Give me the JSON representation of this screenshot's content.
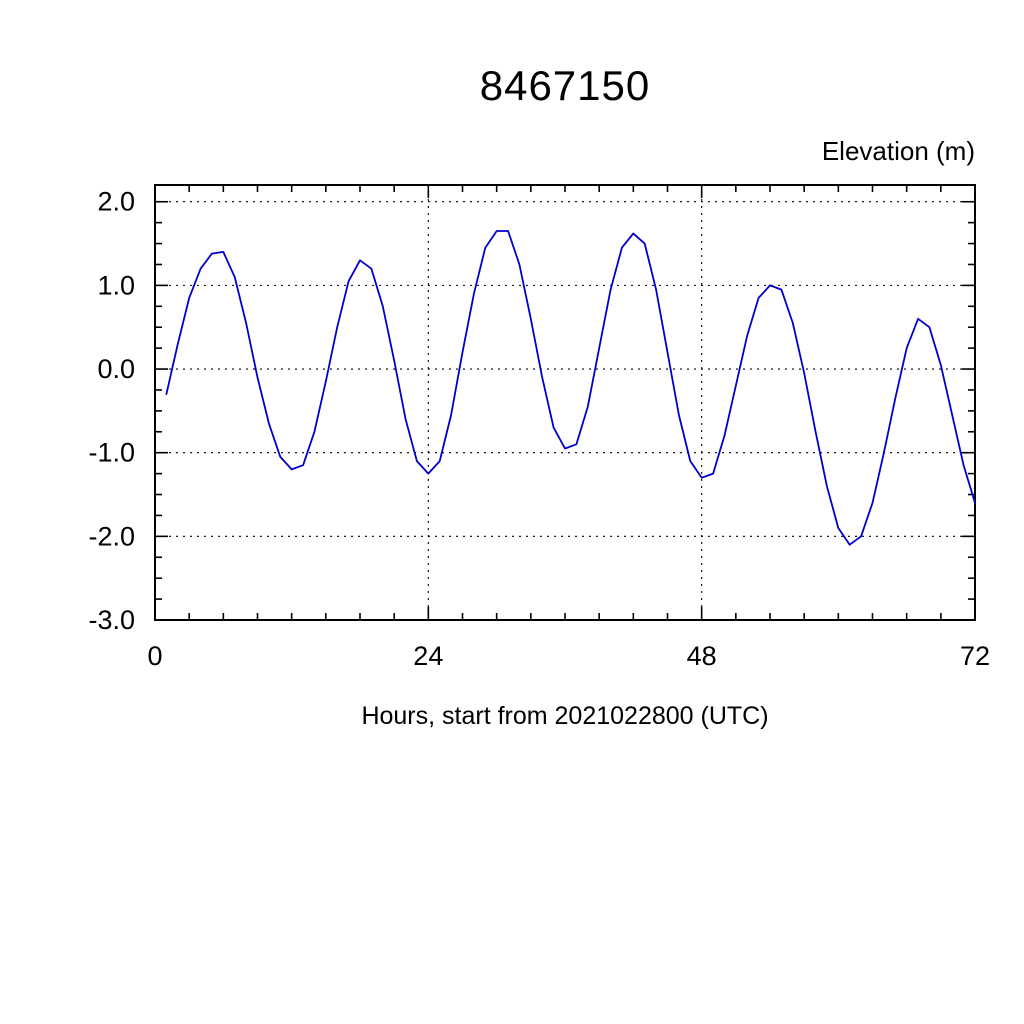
{
  "chart_data": {
    "type": "line",
    "title": "8467150",
    "ylabel": "Elevation (m)",
    "xlabel": "Hours, start from 2021022800 (UTC)",
    "xlim": [
      0,
      72
    ],
    "ylim": [
      -3.0,
      2.2
    ],
    "x_ticks": [
      0,
      24,
      48,
      72
    ],
    "x_tick_labels": [
      "0",
      "24",
      "48",
      "72"
    ],
    "y_ticks": [
      2.0,
      1.0,
      0.0,
      -1.0,
      -2.0,
      -3.0
    ],
    "y_tick_labels": [
      "2.0",
      "1.0",
      "0.0",
      "-1.0",
      "-2.0",
      "-3.0"
    ],
    "x_minor_step": 3,
    "y_minor_step": 0.25,
    "grid": "dashed",
    "legend": "none",
    "line_color": "#0000cc",
    "x": [
      1,
      2,
      3,
      4,
      5,
      6,
      7,
      8,
      9,
      10,
      11,
      12,
      13,
      14,
      15,
      16,
      17,
      18,
      19,
      20,
      21,
      22,
      23,
      24,
      25,
      26,
      27,
      28,
      29,
      30,
      31,
      32,
      33,
      34,
      35,
      36,
      37,
      38,
      39,
      40,
      41,
      42,
      43,
      44,
      45,
      46,
      47,
      48,
      49,
      50,
      51,
      52,
      53,
      54,
      55,
      56,
      57,
      58,
      59,
      60,
      61,
      62,
      63,
      64,
      65,
      66,
      67,
      68,
      69,
      70,
      71,
      72
    ],
    "y": [
      -0.3,
      0.3,
      0.85,
      1.2,
      1.38,
      1.4,
      1.1,
      0.55,
      -0.1,
      -0.65,
      -1.05,
      -1.2,
      -1.15,
      -0.75,
      -0.15,
      0.5,
      1.05,
      1.3,
      1.2,
      0.75,
      0.1,
      -0.6,
      -1.1,
      -1.25,
      -1.1,
      -0.55,
      0.2,
      0.9,
      1.45,
      1.65,
      1.65,
      1.25,
      0.6,
      -0.1,
      -0.7,
      -0.95,
      -0.9,
      -0.45,
      0.25,
      0.95,
      1.45,
      1.62,
      1.5,
      0.95,
      0.2,
      -0.55,
      -1.1,
      -1.3,
      -1.25,
      -0.8,
      -0.2,
      0.4,
      0.85,
      1.0,
      0.95,
      0.55,
      -0.05,
      -0.75,
      -1.4,
      -1.9,
      -2.1,
      -2.0,
      -1.6,
      -1.0,
      -0.35,
      0.25,
      0.6,
      0.5,
      0.05,
      -0.55,
      -1.15,
      -1.6
    ]
  }
}
